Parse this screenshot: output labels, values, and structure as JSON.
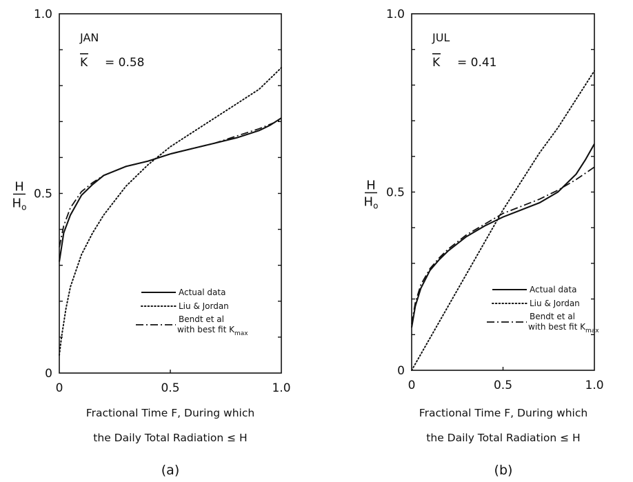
{
  "chart_data": [
    {
      "type": "line",
      "panel_label": "(a)",
      "month": "JAN",
      "k_symbol": "K",
      "k_value": "= 0.58",
      "ylabel_num": "H",
      "ylabel_den": "H",
      "ylabel_den_sub": "o",
      "xlabel_line1": "Fractional Time F, During which",
      "xlabel_line2": "the Daily Total Radiation ≤ H",
      "xlim": [
        0,
        1
      ],
      "ylim": [
        0,
        1
      ],
      "x_tick_labels": [
        "0",
        "0.5",
        "1.0"
      ],
      "y_tick_labels": [
        "0",
        "0.5",
        "1.0"
      ],
      "legend": {
        "placement": "bottom-right",
        "actual": "Actual data",
        "liu": "Liu & Jordan",
        "bendt_line1": "Bendt et al",
        "bendt_line2": "with best fit K",
        "bendt_sub": "max"
      },
      "series": [
        {
          "name": "Actual data",
          "style": "solid",
          "x": [
            0,
            0.02,
            0.05,
            0.1,
            0.15,
            0.2,
            0.3,
            0.4,
            0.5,
            0.6,
            0.7,
            0.8,
            0.9,
            0.95,
            1.0
          ],
          "y": [
            0.31,
            0.39,
            0.44,
            0.495,
            0.525,
            0.55,
            0.575,
            0.59,
            0.61,
            0.625,
            0.64,
            0.655,
            0.675,
            0.69,
            0.71
          ]
        },
        {
          "name": "Liu & Jordan",
          "style": "dotted",
          "x": [
            0,
            0.01,
            0.03,
            0.05,
            0.1,
            0.15,
            0.2,
            0.3,
            0.4,
            0.5,
            0.6,
            0.7,
            0.8,
            0.9,
            1.0
          ],
          "y": [
            0.05,
            0.1,
            0.18,
            0.24,
            0.33,
            0.39,
            0.44,
            0.52,
            0.58,
            0.63,
            0.67,
            0.71,
            0.75,
            0.79,
            0.85
          ]
        },
        {
          "name": "Bendt et al with best fit Kmax",
          "style": "dash-dot",
          "x": [
            0,
            0.02,
            0.05,
            0.1,
            0.15,
            0.2,
            0.3,
            0.4,
            0.5,
            0.6,
            0.7,
            0.8,
            0.9,
            1.0
          ],
          "y": [
            0.35,
            0.41,
            0.46,
            0.505,
            0.53,
            0.55,
            0.575,
            0.59,
            0.61,
            0.625,
            0.64,
            0.66,
            0.68,
            0.705
          ]
        }
      ]
    },
    {
      "type": "line",
      "panel_label": "(b)",
      "month": "JUL",
      "k_symbol": "K",
      "k_value": "= 0.41",
      "ylabel_num": "H",
      "ylabel_den": "H",
      "ylabel_den_sub": "o",
      "xlabel_line1": "Fractional Time F, During which",
      "xlabel_line2": "the Daily Total Radiation ≤ H",
      "xlim": [
        0,
        1
      ],
      "ylim": [
        0,
        1
      ],
      "x_tick_labels": [
        "0",
        "0.5",
        "1.0"
      ],
      "y_tick_labels": [
        "0",
        "0.5",
        "1.0"
      ],
      "legend": {
        "placement": "bottom-right",
        "actual": "Actual data",
        "liu": "Liu & Jordan",
        "bendt_line1": "Bendt et al",
        "bendt_line2": "with best fit K",
        "bendt_sub": "max"
      },
      "series": [
        {
          "name": "Actual data",
          "style": "solid",
          "x": [
            0,
            0.02,
            0.05,
            0.1,
            0.15,
            0.2,
            0.3,
            0.4,
            0.5,
            0.6,
            0.7,
            0.8,
            0.9,
            0.95,
            1.0
          ],
          "y": [
            0.12,
            0.18,
            0.23,
            0.28,
            0.31,
            0.335,
            0.375,
            0.405,
            0.43,
            0.45,
            0.47,
            0.5,
            0.55,
            0.59,
            0.635
          ]
        },
        {
          "name": "Liu & Jordan",
          "style": "dotted",
          "x": [
            0,
            0.1,
            0.2,
            0.3,
            0.4,
            0.5,
            0.6,
            0.7,
            0.8,
            0.9,
            1.0
          ],
          "y": [
            0.0,
            0.09,
            0.18,
            0.27,
            0.36,
            0.45,
            0.53,
            0.61,
            0.68,
            0.76,
            0.84
          ]
        },
        {
          "name": "Bendt et al with best fit Kmax",
          "style": "dash-dot",
          "x": [
            0,
            0.02,
            0.05,
            0.1,
            0.15,
            0.2,
            0.3,
            0.4,
            0.5,
            0.6,
            0.7,
            0.8,
            0.9,
            1.0
          ],
          "y": [
            0.13,
            0.19,
            0.24,
            0.285,
            0.315,
            0.34,
            0.38,
            0.41,
            0.44,
            0.46,
            0.48,
            0.505,
            0.535,
            0.57
          ]
        }
      ]
    }
  ]
}
